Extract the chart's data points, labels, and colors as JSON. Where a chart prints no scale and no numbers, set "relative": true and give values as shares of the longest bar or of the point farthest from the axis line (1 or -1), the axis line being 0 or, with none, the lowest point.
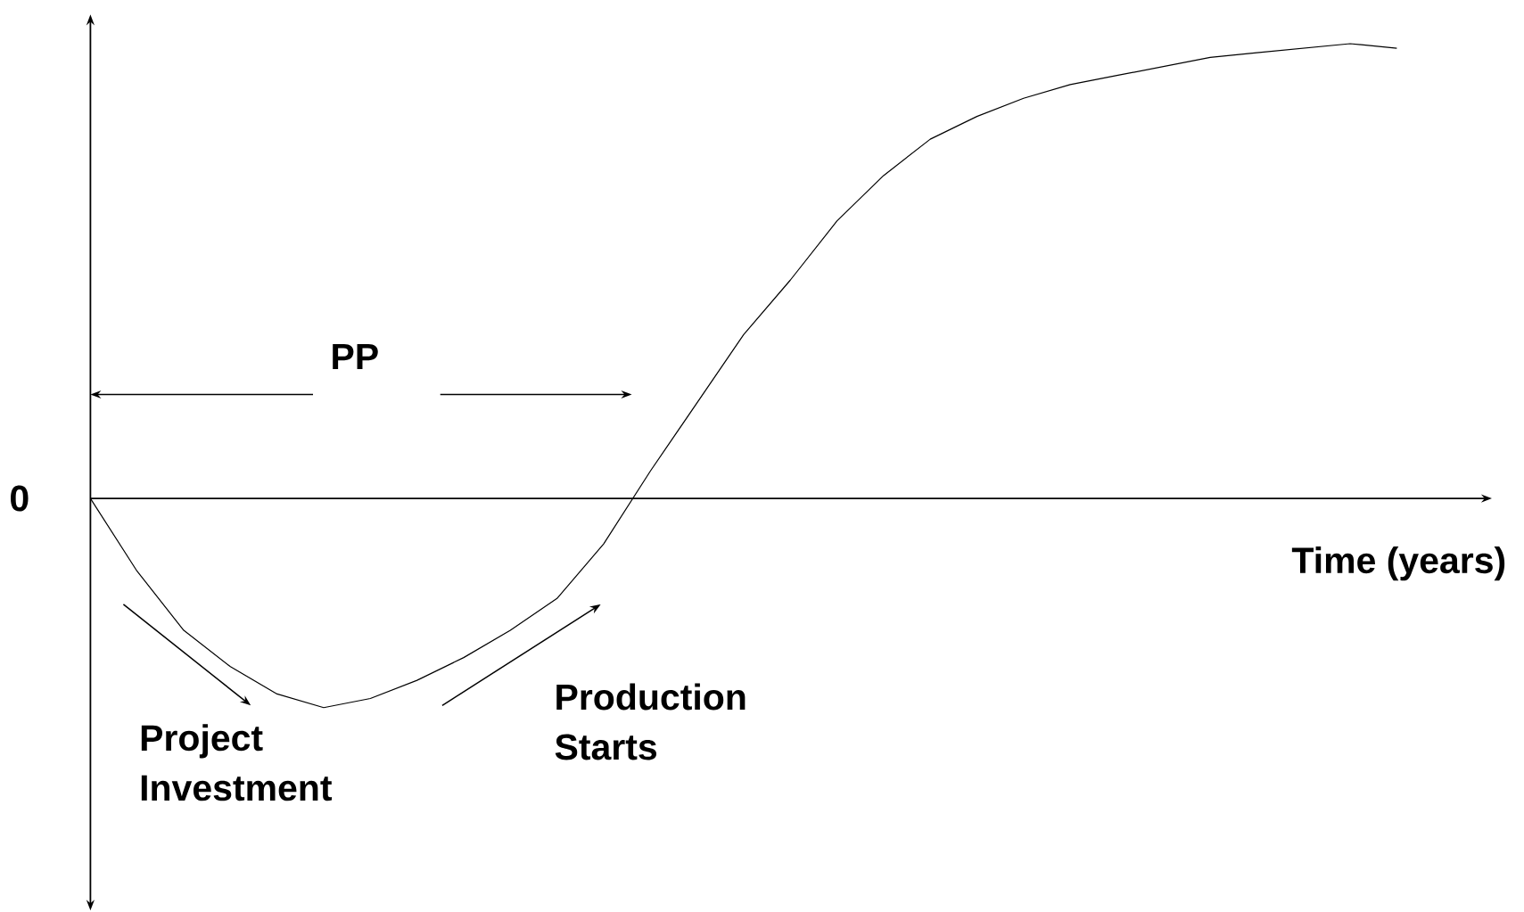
{
  "chart_data": {
    "type": "line",
    "relative": true,
    "xlabel": "Time (years)",
    "categories": [
      null,
      null,
      null,
      null,
      null,
      null,
      null,
      null,
      null,
      null,
      null,
      null,
      null,
      null,
      null,
      null,
      null,
      null,
      null,
      null,
      null,
      null,
      null,
      null,
      null,
      null,
      null,
      null,
      null
    ],
    "series": [
      {
        "color": "#000000",
        "values": [
          0,
          -0.16,
          -0.29,
          -0.37,
          -0.43,
          -0.46,
          -0.44,
          -0.4,
          -0.35,
          -0.29,
          -0.22,
          -0.1,
          0.06,
          0.21,
          0.36,
          0.48,
          0.61,
          0.71,
          0.79,
          0.84,
          0.88,
          0.91,
          0.93,
          0.95,
          0.97,
          0.98,
          0.99,
          1.0,
          0.99
        ]
      }
    ],
    "annotations": [
      "0",
      "PP",
      "Project Investment",
      "Production Starts"
    ],
    "marker": "none",
    "line_style": "solid"
  }
}
